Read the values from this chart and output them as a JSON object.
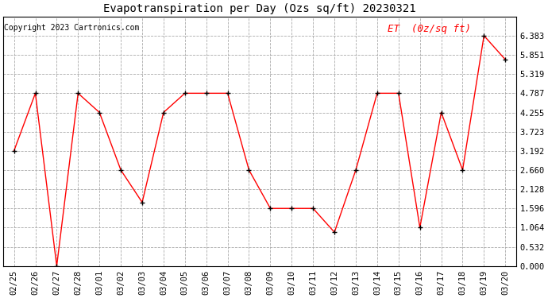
{
  "title": "Evapotranspiration per Day (Ozs sq/ft) 20230321",
  "copyright": "Copyright 2023 Cartronics.com",
  "legend_label": "ET  (0z/sq ft)",
  "dates": [
    "02/25",
    "02/26",
    "02/27",
    "02/28",
    "03/01",
    "03/02",
    "03/03",
    "03/04",
    "03/05",
    "03/06",
    "03/07",
    "03/08",
    "03/09",
    "03/10",
    "03/11",
    "03/12",
    "03/13",
    "03/14",
    "03/15",
    "03/16",
    "03/17",
    "03/18",
    "03/19",
    "03/20"
  ],
  "values": [
    3.192,
    4.787,
    0.0,
    4.787,
    4.255,
    2.66,
    1.764,
    4.255,
    4.787,
    4.787,
    4.787,
    2.66,
    1.596,
    1.596,
    1.596,
    0.936,
    2.66,
    4.787,
    4.787,
    1.064,
    4.255,
    2.66,
    6.383,
    5.72
  ],
  "ylim": [
    0.0,
    6.915
  ],
  "yticks": [
    0.0,
    0.532,
    1.064,
    1.596,
    2.128,
    2.66,
    3.192,
    3.723,
    4.255,
    4.787,
    5.319,
    5.851,
    6.383
  ],
  "line_color": "red",
  "marker": "+",
  "marker_color": "black",
  "bg_color": "white",
  "grid_color": "#aaaaaa",
  "title_color": "black",
  "copyright_color": "black",
  "legend_color": "red",
  "title_fontsize": 10,
  "copyright_fontsize": 7,
  "legend_fontsize": 9,
  "tick_fontsize": 7.5
}
